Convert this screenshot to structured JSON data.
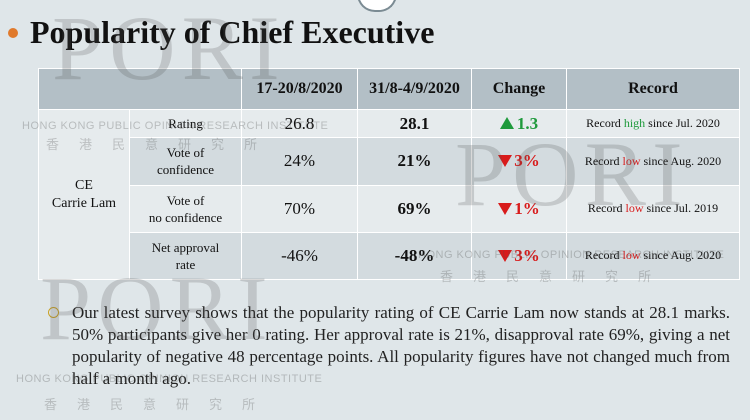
{
  "title": "Popularity of Chief Executive",
  "watermark": {
    "brand": "PORI",
    "name_en": "HONG KONG PUBLIC OPINION RESEARCH INSTITUTE",
    "name_cn": "香港民意研究所"
  },
  "table": {
    "headers": [
      "",
      "",
      "17-20/8/2020",
      "31/8-4/9/2020",
      "Change",
      "Record"
    ],
    "subject_line1": "CE",
    "subject_line2": "Carrie Lam",
    "rows": [
      {
        "metric_1": "Rating",
        "metric_2": "",
        "v1": "26.8",
        "v2": "28.1",
        "change": "1.3",
        "direction": "up",
        "record_pre": "Record ",
        "record_word": "high",
        "record_post": " since Jul. 2020"
      },
      {
        "metric_1": "Vote of",
        "metric_2": "confidence",
        "v1": "24%",
        "v2": "21%",
        "change": "3%",
        "direction": "down",
        "record_pre": "Record ",
        "record_word": "low",
        "record_post": " since Aug. 2020"
      },
      {
        "metric_1": "Vote of",
        "metric_2": "no confidence",
        "v1": "70%",
        "v2": "69%",
        "change": "1%",
        "direction": "down",
        "record_pre": "Record ",
        "record_word": "low",
        "record_post": " since Jul. 2019"
      },
      {
        "metric_1": "Net approval",
        "metric_2": "rate",
        "v1": "-46%",
        "v2": "-48%",
        "change": "3%",
        "direction": "down",
        "record_pre": "Record ",
        "record_word": "low",
        "record_post": " since Aug. 2020"
      }
    ]
  },
  "note": "Our latest survey shows that the popularity rating of CE Carrie Lam now stands at 28.1 marks. 50% participants give her 0 rating. Her approval rate is 21%, disapproval rate 69%, giving a net popularity of negative 48 percentage points. All popularity figures have not changed much from half a month ago.",
  "colors": {
    "background": "#dfe6e9",
    "header": "#b3bfc6",
    "up": "#1f9a3c",
    "down": "#d81b1b",
    "bullet": "#e07a2c"
  }
}
